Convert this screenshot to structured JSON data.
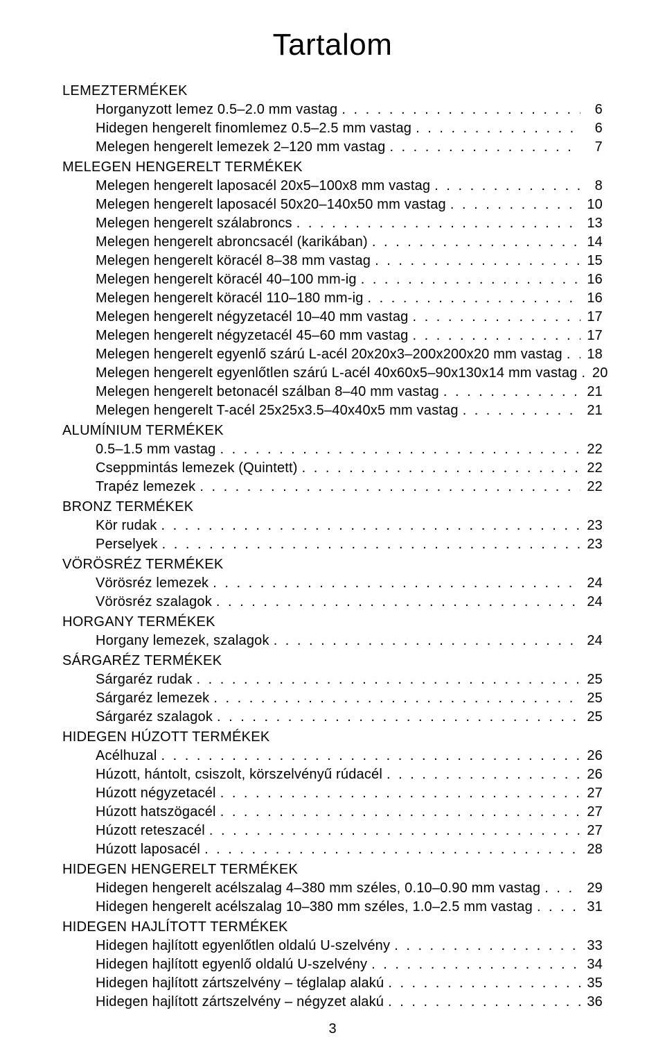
{
  "title": "Tartalom",
  "page_number": "3",
  "sections": [
    {
      "header": "LEMEZTERMÉKEK",
      "items": [
        {
          "label": "Horganyzott lemez 0.5–2.0 mm vastag",
          "page": "6"
        },
        {
          "label": "Hidegen hengerelt finomlemez 0.5–2.5 mm vastag",
          "page": "6"
        },
        {
          "label": "Melegen hengerelt lemezek 2–120 mm vastag",
          "page": "7"
        }
      ]
    },
    {
      "header": "MELEGEN HENGERELT TERMÉKEK",
      "items": [
        {
          "label": "Melegen hengerelt laposacél 20x5–100x8 mm vastag",
          "page": "8"
        },
        {
          "label": "Melegen hengerelt laposacél 50x20–140x50 mm vastag",
          "page": "10"
        },
        {
          "label": "Melegen hengerelt szálabroncs",
          "page": "13"
        },
        {
          "label": "Melegen hengerelt abroncsacél (karikában)",
          "page": "14"
        },
        {
          "label": "Melegen hengerelt köracél 8–38 mm vastag",
          "page": "15"
        },
        {
          "label": "Melegen hengerelt köracél 40–100 mm-ig",
          "page": "16"
        },
        {
          "label": "Melegen hengerelt köracél 110–180 mm-ig",
          "page": "16"
        },
        {
          "label": "Melegen hengerelt négyzetacél 10–40 mm vastag",
          "page": "17"
        },
        {
          "label": "Melegen hengerelt négyzetacél 45–60 mm vastag",
          "page": "17"
        },
        {
          "label": "Melegen hengerelt egyenlő szárú L-acél 20x20x3–200x200x20 mm vastag",
          "page": "18"
        },
        {
          "label": "Melegen hengerelt egyenlőtlen szárú L-acél 40x60x5–90x130x14 mm vastag",
          "page": "20"
        },
        {
          "label": "Melegen hengerelt betonacél szálban 8–40 mm vastag",
          "page": "21"
        },
        {
          "label": "Melegen hengerelt T-acél 25x25x3.5–40x40x5 mm vastag",
          "page": "21"
        }
      ]
    },
    {
      "header": "ALUMÍNIUM TERMÉKEK",
      "items": [
        {
          "label": "0.5–1.5 mm vastag",
          "page": "22"
        },
        {
          "label": "Cseppmintás lemezek (Quintett)",
          "page": "22"
        },
        {
          "label": "Trapéz lemezek",
          "page": "22"
        }
      ]
    },
    {
      "header": "BRONZ TERMÉKEK",
      "items": [
        {
          "label": "Kör rudak",
          "page": "23"
        },
        {
          "label": "Perselyek",
          "page": "23"
        }
      ]
    },
    {
      "header": "VÖRÖSRÉZ TERMÉKEK",
      "items": [
        {
          "label": "Vörösréz lemezek",
          "page": "24"
        },
        {
          "label": "Vörösréz szalagok",
          "page": "24"
        }
      ]
    },
    {
      "header": "HORGANY TERMÉKEK",
      "items": [
        {
          "label": "Horgany lemezek, szalagok",
          "page": "24"
        }
      ]
    },
    {
      "header": "SÁRGARÉZ TERMÉKEK",
      "items": [
        {
          "label": "Sárgaréz rudak",
          "page": "25"
        },
        {
          "label": "Sárgaréz lemezek",
          "page": "25"
        },
        {
          "label": "Sárgaréz szalagok",
          "page": "25"
        }
      ]
    },
    {
      "header": "HIDEGEN HÚZOTT TERMÉKEK",
      "items": [
        {
          "label": "Acélhuzal",
          "page": "26"
        },
        {
          "label": "Húzott, hántolt, csiszolt, körszelvényű rúdacél",
          "page": "26"
        },
        {
          "label": "Húzott négyzetacél",
          "page": "27"
        },
        {
          "label": "Húzott hatszögacél",
          "page": "27"
        },
        {
          "label": "Húzott reteszacél",
          "page": "27"
        },
        {
          "label": "Húzott laposacél",
          "page": "28"
        }
      ]
    },
    {
      "header": "HIDEGEN HENGERELT TERMÉKEK",
      "items": [
        {
          "label": "Hidegen hengerelt acélszalag 4–380 mm széles, 0.10–0.90 mm vastag",
          "page": "29"
        },
        {
          "label": "Hidegen hengerelt acélszalag 10–380 mm széles, 1.0–2.5 mm vastag",
          "page": "31"
        }
      ]
    },
    {
      "header": "HIDEGEN HAJLÍTOTT TERMÉKEK",
      "items": [
        {
          "label": "Hidegen hajlított egyenlőtlen oldalú U-szelvény",
          "page": "33"
        },
        {
          "label": "Hidegen hajlított egyenlő oldalú U-szelvény",
          "page": "34"
        },
        {
          "label": "Hidegen hajlított zártszelvény – téglalap alakú",
          "page": "35"
        },
        {
          "label": "Hidegen hajlított zártszelvény – négyzet alakú",
          "page": "36"
        }
      ]
    }
  ]
}
